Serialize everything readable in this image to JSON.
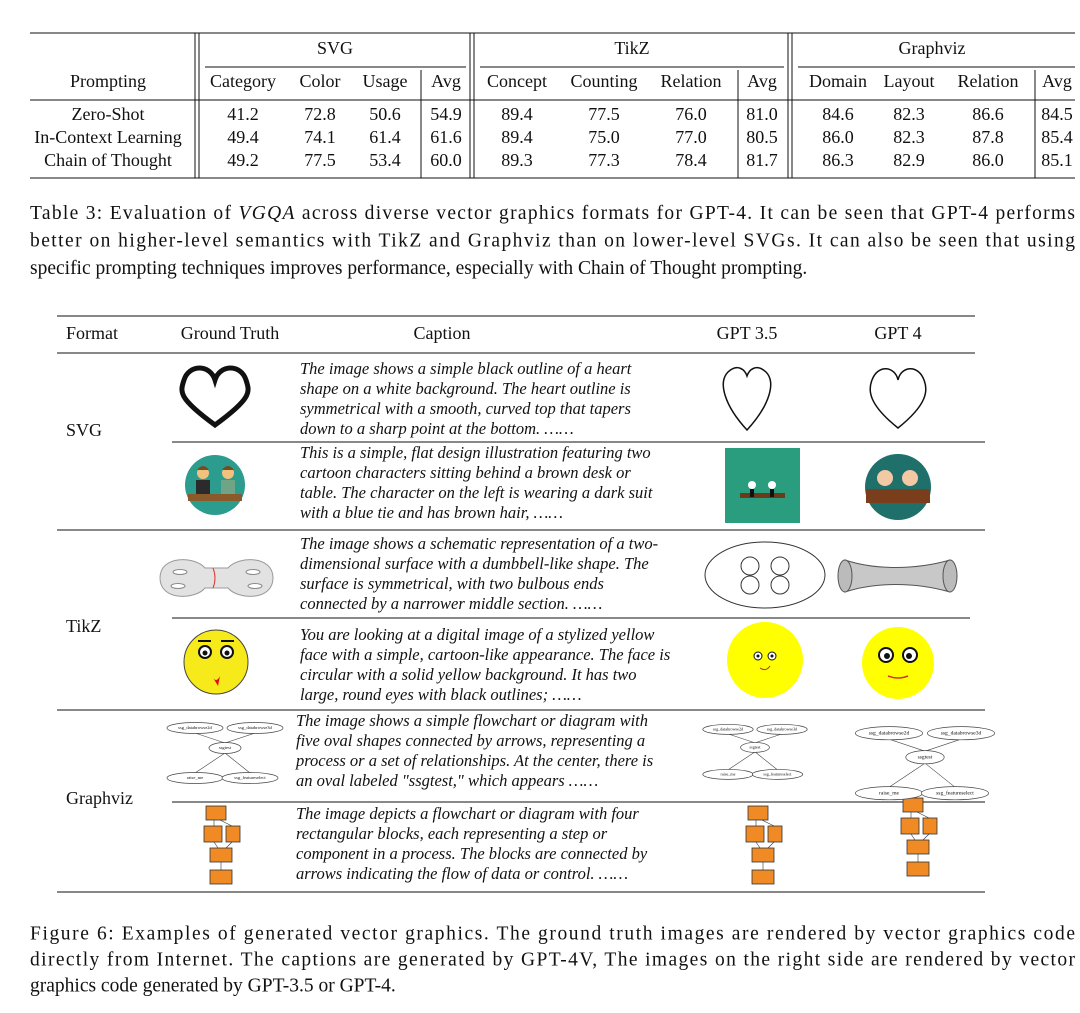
{
  "table": {
    "prompting_header": "Prompting",
    "groups": [
      {
        "name": "SVG",
        "color": "#29a3d6",
        "columns": [
          "Category",
          "Color",
          "Usage",
          "Avg"
        ],
        "column_colors": [
          "#29a3d6",
          "#29a3d6",
          "#29a3d6",
          "#111111"
        ]
      },
      {
        "name": "TikZ",
        "color": "#f0901e",
        "columns": [
          "Concept",
          "Counting",
          "Relation",
          "Avg"
        ],
        "column_colors": [
          "#f0901e",
          "#f0901e",
          "#f0901e",
          "#111111"
        ]
      },
      {
        "name": "Graphviz",
        "color": "#8a1e9e",
        "columns": [
          "Domain",
          "Layout",
          "Relation",
          "Avg"
        ],
        "column_colors": [
          "#8a1e9e",
          "#8a1e9e",
          "#8a1e9e",
          "#111111"
        ]
      }
    ],
    "rows": [
      {
        "label": "Zero-Shot",
        "values": [
          "41.2",
          "72.8",
          "50.6",
          "54.9",
          "89.4",
          "77.5",
          "76.0",
          "81.0",
          "84.6",
          "82.3",
          "86.6",
          "84.5"
        ]
      },
      {
        "label": "In-Context Learning",
        "values": [
          "49.4",
          "74.1",
          "61.4",
          "61.6",
          "89.4",
          "75.0",
          "77.0",
          "80.5",
          "86.0",
          "82.3",
          "87.8",
          "85.4"
        ]
      },
      {
        "label": "Chain of Thought",
        "values": [
          "49.2",
          "77.5",
          "53.4",
          "60.0",
          "89.3",
          "77.3",
          "78.4",
          "81.7",
          "86.3",
          "82.9",
          "86.0",
          "85.1"
        ]
      }
    ],
    "caption_lines": [
      [
        "Table 3: Evaluation of ",
        "VGQA",
        " across diverse vector graphics formats for GPT-4. It can be seen that GPT-4 performs"
      ],
      [
        "better on higher-level semantics with TikZ and Graphviz than on lower-level SVGs. It can also be seen that using"
      ],
      [
        "specific prompting techniques improves performance, especially with Chain of Thought prompting."
      ]
    ]
  },
  "figure": {
    "columns": [
      "Format",
      "Ground Truth",
      "Caption",
      "GPT 3.5",
      "GPT 4"
    ],
    "formats": [
      {
        "name": "SVG",
        "examples": [
          {
            "caption_lines": [
              "The image shows a simple black outline of a heart",
              "shape on a white background. The heart outline is",
              "symmetrical with a smooth, curved top that tapers",
              "down to a sharp point at the bottom. ……"
            ]
          },
          {
            "caption_lines": [
              "This is a simple, flat design illustration featuring two",
              "cartoon characters sitting behind a brown desk or",
              "table. The character on the left is wearing a dark suit",
              "with a blue tie and has brown hair, ……"
            ]
          }
        ]
      },
      {
        "name": "TikZ",
        "examples": [
          {
            "caption_lines": [
              "The image shows a schematic representation of a two-",
              "dimensional surface with a dumbbell-like shape. The",
              "surface is symmetrical, with two bulbous ends",
              "connected by a narrower middle section. ……"
            ]
          },
          {
            "caption_lines": [
              "You are looking at a digital image of a stylized yellow",
              "face with a simple, cartoon-like appearance. The face is",
              "circular with a solid yellow background. It has two",
              "large, round eyes with black outlines; ……"
            ]
          }
        ]
      },
      {
        "name": "Graphviz",
        "examples": [
          {
            "caption_lines": [
              "The image shows a simple flowchart or diagram with",
              "five oval shapes connected by arrows, representing a",
              "process or a set of relationships. At the center, there is",
              "an oval labeled \"ssgtest,\" which appears ……"
            ]
          },
          {
            "caption_lines": [
              "The image depicts a flowchart or diagram with four",
              "rectangular blocks, each representing a step or",
              "component in a process. The blocks are connected by",
              "arrows indicating the flow of data or control. ……"
            ]
          }
        ]
      }
    ],
    "graph_nodes": [
      "ssg_databrowse2d",
      "ssg_databrowse3d",
      "ssgtest",
      "raise_me",
      "ssg_featureselect"
    ],
    "caption_lines": [
      "Figure 6: Examples of generated vector graphics. The ground truth images are rendered by vector graphics code",
      "directly from Internet. The captions are generated by GPT-4V, The images on the right side are rendered by vector",
      "graphics code generated by GPT-3.5 or GPT-4."
    ]
  }
}
